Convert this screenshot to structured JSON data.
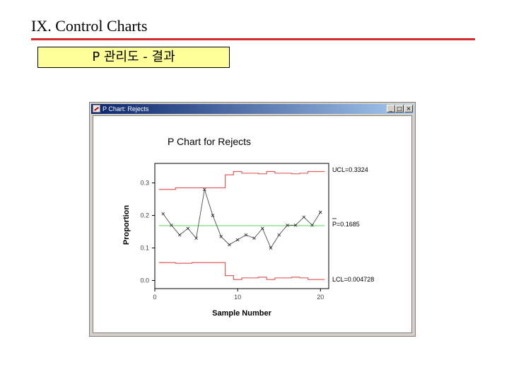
{
  "slide": {
    "title": "IX. Control Charts",
    "subtitle": "P 관리도 - 결과"
  },
  "window": {
    "title": "P Chart: Rejects",
    "minimize_label": "_",
    "maximize_label": "□",
    "close_label": "×"
  },
  "chart_data": {
    "type": "line",
    "title": "P Chart for Rejects",
    "xlabel": "Sample Number",
    "ylabel": "Proportion",
    "xlim": [
      0,
      21
    ],
    "ylim": [
      -0.025,
      0.36
    ],
    "xticks": [
      0,
      10,
      20
    ],
    "yticks": [
      0.0,
      0.1,
      0.2,
      0.3
    ],
    "x": [
      1,
      2,
      3,
      4,
      5,
      6,
      7,
      8,
      9,
      10,
      11,
      12,
      13,
      14,
      15,
      16,
      17,
      18,
      19,
      20
    ],
    "series": [
      {
        "values": [
          0.205,
          0.17,
          0.14,
          0.16,
          0.13,
          0.28,
          0.2,
          0.135,
          0.11,
          0.125,
          0.14,
          0.13,
          0.16,
          0.1,
          0.14,
          0.17,
          0.17,
          0.195,
          0.17,
          0.21
        ]
      }
    ],
    "ucl_steps": [
      0.28,
      0.28,
      0.285,
      0.285,
      0.285,
      0.285,
      0.285,
      0.285,
      0.325,
      0.335,
      0.33,
      0.33,
      0.328,
      0.335,
      0.33,
      0.33,
      0.328,
      0.33,
      0.335,
      0.335
    ],
    "lcl_steps": [
      0.055,
      0.055,
      0.053,
      0.053,
      0.055,
      0.055,
      0.055,
      0.055,
      0.015,
      0.003,
      0.008,
      0.008,
      0.01,
      0.003,
      0.008,
      0.008,
      0.01,
      0.008,
      0.003,
      0.003
    ],
    "center": 0.1685,
    "labels": {
      "ucl": "UCL=0.3324",
      "center": "P=0.1685",
      "lcl": "LCL=0.004728"
    },
    "colors": {
      "data": "#505050",
      "limits": "#e06060",
      "center": "#90e090"
    }
  }
}
